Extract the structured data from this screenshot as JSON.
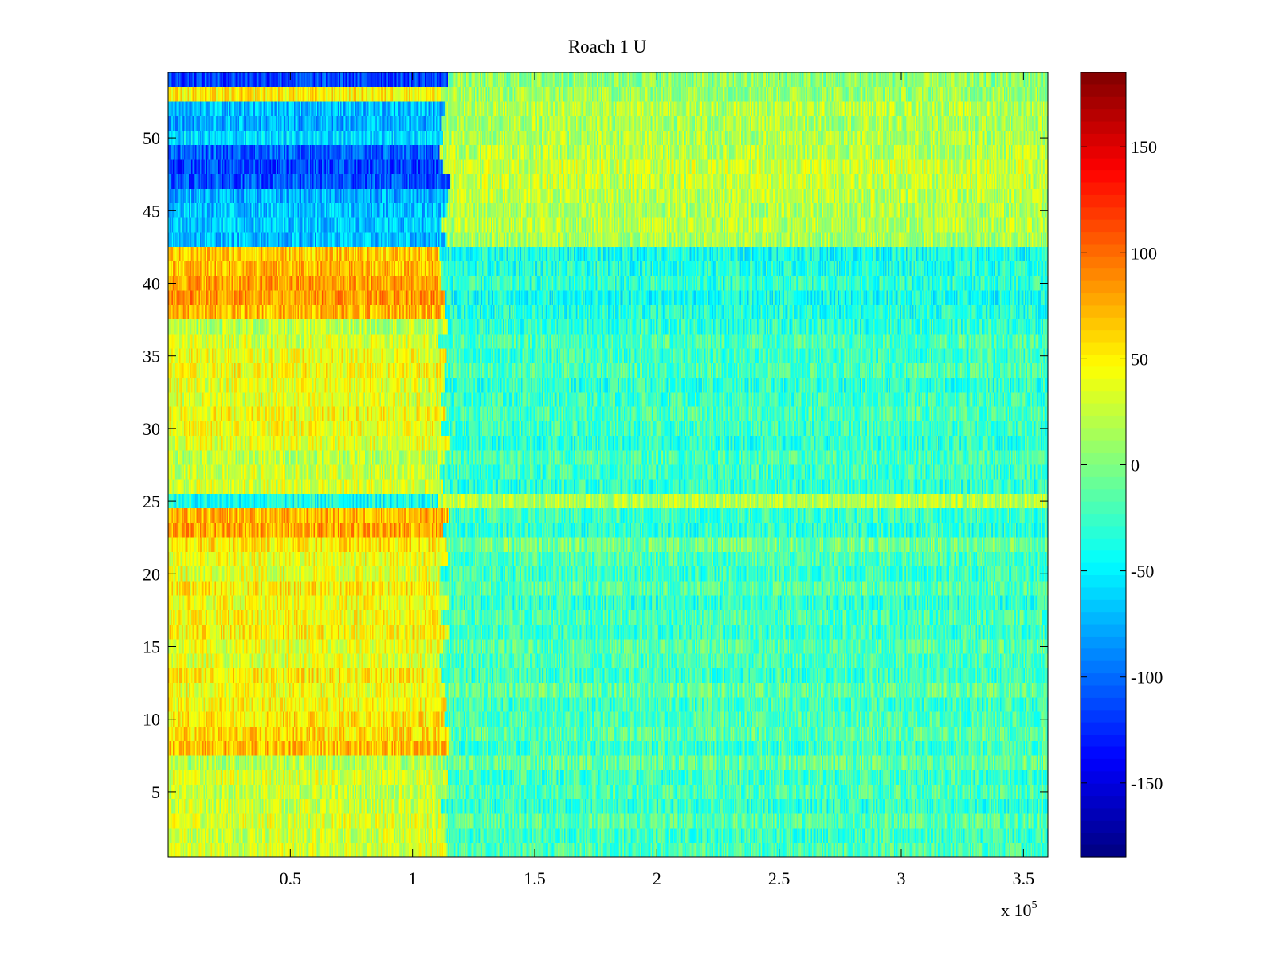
{
  "chart_data": {
    "type": "heatmap",
    "title": "Roach 1 U",
    "xlabel": "",
    "ylabel": "",
    "x_multiplier_label": "x 10",
    "x_multiplier_exponent": "5",
    "xlim": [
      0,
      360000
    ],
    "ylim": [
      0.5,
      54.5
    ],
    "rows": 54,
    "x_ticks": [
      {
        "value": 50000,
        "label": "0.5"
      },
      {
        "value": 100000,
        "label": "1"
      },
      {
        "value": 150000,
        "label": "1.5"
      },
      {
        "value": 200000,
        "label": "2"
      },
      {
        "value": 250000,
        "label": "2.5"
      },
      {
        "value": 300000,
        "label": "3"
      },
      {
        "value": 350000,
        "label": "3.5"
      }
    ],
    "y_ticks": [
      {
        "value": 5,
        "label": "5"
      },
      {
        "value": 10,
        "label": "10"
      },
      {
        "value": 15,
        "label": "15"
      },
      {
        "value": 20,
        "label": "20"
      },
      {
        "value": 25,
        "label": "25"
      },
      {
        "value": 30,
        "label": "30"
      },
      {
        "value": 35,
        "label": "35"
      },
      {
        "value": 40,
        "label": "40"
      },
      {
        "value": 45,
        "label": "45"
      },
      {
        "value": 50,
        "label": "50"
      }
    ],
    "colormap": "jet",
    "clim": [
      -185,
      185
    ],
    "colorbar_ticks": [
      {
        "value": 150,
        "label": "150"
      },
      {
        "value": 100,
        "label": "100"
      },
      {
        "value": 50,
        "label": "50"
      },
      {
        "value": 0,
        "label": "0"
      },
      {
        "value": -50,
        "label": "-50"
      },
      {
        "value": -100,
        "label": "-100"
      },
      {
        "value": -150,
        "label": "-150"
      }
    ],
    "transition_x": 113000,
    "row_means_before_transition": [
      30,
      28,
      33,
      26,
      24,
      32,
      18,
      70,
      58,
      55,
      45,
      40,
      50,
      35,
      38,
      48,
      45,
      42,
      50,
      36,
      40,
      52,
      78,
      72,
      -40,
      30,
      28,
      22,
      35,
      42,
      45,
      35,
      38,
      44,
      40,
      30,
      20,
      72,
      85,
      80,
      70,
      65,
      -70,
      -65,
      -68,
      -75,
      -110,
      -115,
      -105,
      -60,
      -75,
      -70,
      50,
      -115
    ],
    "row_means_after_transition": [
      -20,
      -25,
      -15,
      -30,
      -20,
      -25,
      -10,
      -25,
      -15,
      -20,
      -25,
      -10,
      -25,
      -20,
      -15,
      -25,
      -20,
      -30,
      -15,
      -25,
      -20,
      -5,
      -30,
      -25,
      20,
      -30,
      -25,
      -20,
      -30,
      -25,
      -20,
      -25,
      -30,
      -20,
      -25,
      -20,
      -30,
      -35,
      -40,
      -30,
      -35,
      -40,
      15,
      20,
      18,
      22,
      25,
      28,
      20,
      18,
      15,
      20,
      10,
      5
    ],
    "noise_amplitude": 28
  }
}
